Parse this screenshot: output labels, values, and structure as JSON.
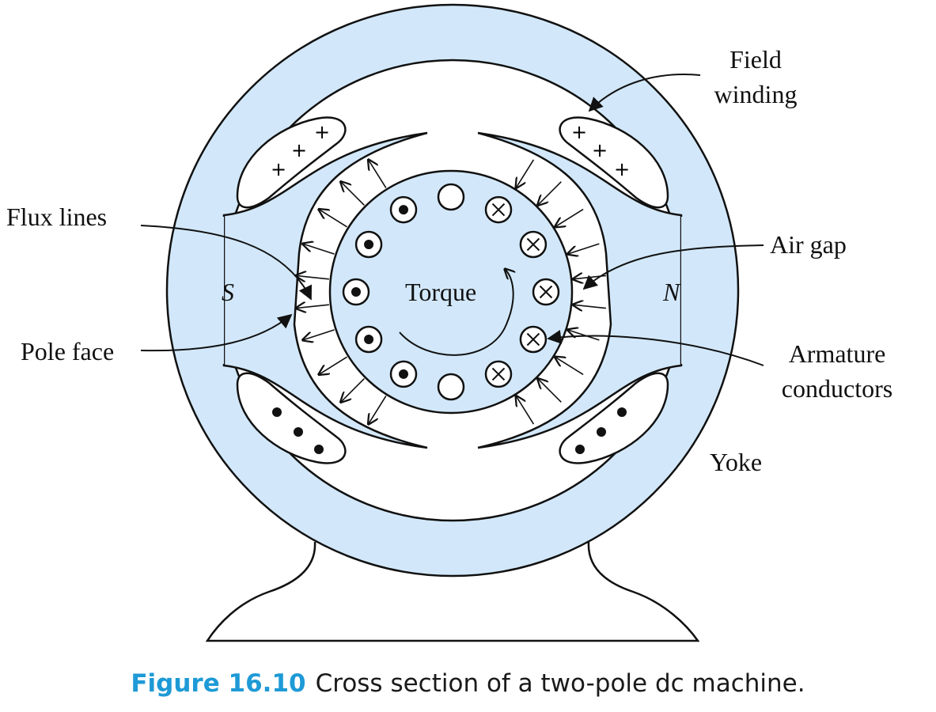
{
  "labels": {
    "field_winding_1": "Field",
    "field_winding_2": "winding",
    "flux_lines": "Flux lines",
    "air_gap": "Air gap",
    "pole_face": "Pole face",
    "armature_conductors_1": "Armature",
    "armature_conductors_2": "conductors",
    "yoke": "Yoke",
    "torque": "Torque",
    "south_pole": "S",
    "north_pole": "N"
  },
  "caption": {
    "figure_number": "Figure 16.10",
    "text": "Cross section of a two-pole dc machine."
  },
  "colors": {
    "iron_fill": "#d2e8fa",
    "outline": "#111111",
    "caption_accent": "#1e9ad6"
  },
  "conductor_symbols": {
    "left_side": "dot (current out of page)",
    "right_side": "cross (current into page)",
    "top_bottom": "empty"
  }
}
